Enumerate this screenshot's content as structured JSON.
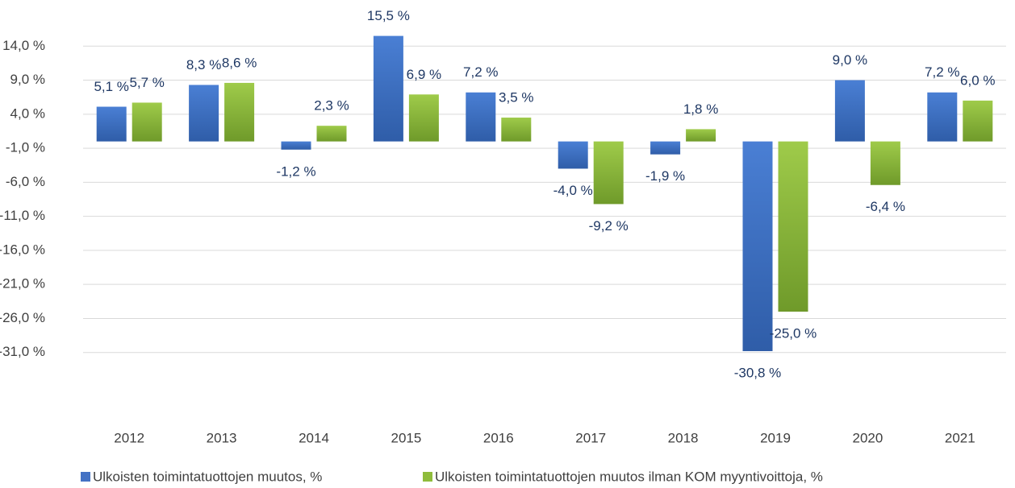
{
  "chart_data": {
    "type": "bar",
    "categories": [
      "2012",
      "2013",
      "2014",
      "2015",
      "2016",
      "2017",
      "2018",
      "2019",
      "2020",
      "2021"
    ],
    "series": [
      {
        "name": "Ulkoisten toimintatuottojen muutos, %",
        "color": "#4472c4",
        "values": [
          5.1,
          8.3,
          -1.2,
          15.5,
          7.2,
          -4.0,
          -1.9,
          -30.8,
          9.0,
          7.2
        ],
        "value_labels": [
          "5,1 %",
          "8,3 %",
          "-1,2 %",
          "15,5 %",
          "7,2 %",
          "-4,0 %",
          "-1,9 %",
          "-30,8 %",
          "9,0 %",
          "7,2 %"
        ]
      },
      {
        "name": "Ulkoisten toimintatuottojen muutos ilman KOM myyntivoittoja, %",
        "color": "#8fbc3c",
        "values": [
          5.7,
          8.6,
          2.3,
          6.9,
          3.5,
          -9.2,
          1.8,
          -25.0,
          -6.4,
          6.0
        ],
        "value_labels": [
          "5,7 %",
          "8,6 %",
          "2,3 %",
          "6,9 %",
          "3,5 %",
          "-9,2 %",
          "1,8 %",
          "-25,0 %",
          "-6,4 %",
          "6,0 %"
        ]
      }
    ],
    "ylim": [
      -36,
      19
    ],
    "yticks": [
      {
        "value": 14,
        "label": "14,0 %"
      },
      {
        "value": 9,
        "label": "9,0 %"
      },
      {
        "value": 4,
        "label": "4,0 %"
      },
      {
        "value": -1,
        "label": "-1,0 %"
      },
      {
        "value": -6,
        "label": "-6,0 %"
      },
      {
        "value": -11,
        "label": "-11,0 %"
      },
      {
        "value": -16,
        "label": "-16,0 %"
      },
      {
        "value": -21,
        "label": "-21,0 %"
      },
      {
        "value": -26,
        "label": "-26,0 %"
      },
      {
        "value": -31,
        "label": "-31,0 %"
      }
    ],
    "grid": true,
    "legend": "bottom"
  }
}
